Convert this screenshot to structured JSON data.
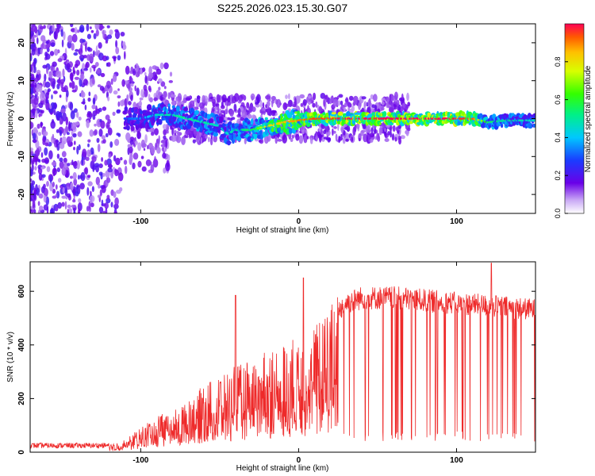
{
  "figure": {
    "title": "S225.2026.023.15.30.G07"
  },
  "chart_data": [
    {
      "type": "heatmap",
      "xlabel": "Height of straight line (km)",
      "ylabel": "Frequency (Hz)",
      "xlim": [
        -170,
        150
      ],
      "ylim": [
        -25,
        25
      ],
      "xticks": [
        -100,
        0,
        100
      ],
      "yticks": [
        -20,
        -10,
        0,
        10,
        20
      ],
      "colorbar": {
        "label": "Normalized spectral amplitude",
        "range": [
          0,
          1
        ],
        "ticks": [
          0.0,
          0.2,
          0.4,
          0.6,
          0.8
        ],
        "tick_labels": [
          "0.0",
          "0.2",
          "0.4",
          "0.6",
          "0.8"
        ]
      },
      "ridge": {
        "x": [
          -110,
          -100,
          -90,
          -80,
          -70,
          -60,
          -50,
          -45,
          -40,
          -30,
          -20,
          -10,
          0,
          10,
          20,
          30,
          50,
          70,
          90,
          110,
          120,
          130,
          150
        ],
        "freq": [
          0,
          0,
          1,
          1,
          0,
          -1,
          -2,
          -4,
          -3,
          -3,
          -2,
          -1,
          -0.5,
          0,
          0,
          0,
          0,
          0,
          0,
          0,
          -1,
          -0.5,
          -0.5
        ],
        "peak_amplitude": [
          0.3,
          0.35,
          0.45,
          0.5,
          0.5,
          0.5,
          0.45,
          0.45,
          0.5,
          0.55,
          0.8,
          0.85,
          0.9,
          0.95,
          0.95,
          1.0,
          1.0,
          1.0,
          1.0,
          0.95,
          0.55,
          0.5,
          0.45
        ]
      }
    },
    {
      "type": "line",
      "xlabel": "Height of straight line (km)",
      "ylabel": "SNR (10 * v/v)",
      "xlim": [
        -170,
        150
      ],
      "ylim": [
        0,
        710
      ],
      "xticks": [
        -100,
        0,
        100
      ],
      "yticks": [
        0,
        200,
        400,
        600
      ],
      "color": "#ee2a2a",
      "envelope": {
        "x": [
          -170,
          -120,
          -110,
          -100,
          -90,
          -80,
          -70,
          -60,
          -50,
          -40,
          -30,
          -20,
          -10,
          0,
          10,
          20,
          25,
          30,
          40,
          60,
          80,
          100,
          120,
          140,
          150
        ],
        "y": [
          25,
          25,
          40,
          80,
          120,
          130,
          170,
          220,
          250,
          280,
          300,
          330,
          350,
          380,
          420,
          470,
          540,
          570,
          590,
          590,
          580,
          570,
          560,
          550,
          545
        ]
      }
    }
  ]
}
